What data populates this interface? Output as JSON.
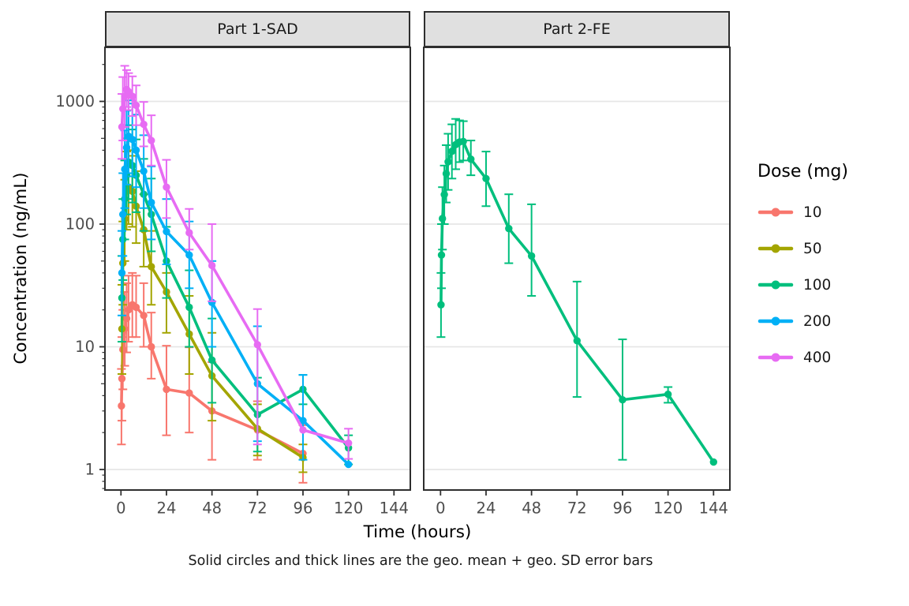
{
  "figure": {
    "background": "#FFFFFF"
  },
  "legend": {
    "title": "Dose (mg)",
    "entries": [
      {
        "label": "10",
        "color": "#F8766D"
      },
      {
        "label": "50",
        "color": "#A3A500"
      },
      {
        "label": "100",
        "color": "#00BF7D"
      },
      {
        "label": "200",
        "color": "#00B0F6"
      },
      {
        "label": "400",
        "color": "#E76BF3"
      }
    ]
  },
  "chart_data": {
    "type": "line",
    "title": "",
    "xlabel": "Time (hours)",
    "ylabel": "Concentration (ng/mL)",
    "caption": "Solid circles and thick lines are the geo. mean + geo. SD error bars",
    "legend_title": "Dose (mg)",
    "log_y": true,
    "x_ticks": [
      0,
      24,
      48,
      72,
      96,
      120,
      144
    ],
    "y_ticks": [
      1,
      10,
      100,
      1000
    ],
    "xlim_hours": [
      -8.5,
      152.5
    ],
    "ylim": [
      0.68,
      2750
    ],
    "grid": "major horizontal only",
    "legend_position": "right",
    "points_format": "t_hours, geo_mean, err_lo, err_hi",
    "style": {
      "strip_bg": "#E0E0E0",
      "grid_color": "#E6E6E6",
      "border_color": "#2E2E2E",
      "tick_label_color": "#4D4D4D"
    },
    "facets": [
      {
        "label": "Part 1-SAD",
        "series": [
          {
            "name": "10",
            "dose_mg": 10,
            "color": "#F8766D",
            "points": [
              [
                0.25,
                3.3,
                1.6,
                6.6
              ],
              [
                0.5,
                5.5,
                2.5,
                12
              ],
              [
                1,
                9.5,
                4.5,
                20
              ],
              [
                2,
                14,
                7,
                28
              ],
              [
                3,
                17,
                9,
                33
              ],
              [
                4,
                20,
                11,
                38
              ],
              [
                6,
                22,
                12,
                40
              ],
              [
                8,
                21,
                12,
                38
              ],
              [
                12,
                18,
                10,
                33
              ],
              [
                16,
                10,
                5.5,
                19
              ],
              [
                24,
                4.5,
                1.9,
                10.2
              ],
              [
                36,
                4.2,
                2,
                9.9
              ],
              [
                48,
                3,
                1.2,
                7.5
              ],
              [
                72,
                2.1,
                1.2,
                3.6
              ],
              [
                96,
                1.35,
                0.78,
                2.3
              ]
            ]
          },
          {
            "name": "50",
            "dose_mg": 50,
            "color": "#A3A500",
            "points": [
              [
                0.5,
                14,
                6,
                32
              ],
              [
                1,
                48,
                22,
                105
              ],
              [
                2,
                110,
                50,
                230
              ],
              [
                3,
                190,
                90,
                390
              ],
              [
                4,
                200,
                100,
                400
              ],
              [
                6,
                185,
                95,
                360
              ],
              [
                8,
                140,
                70,
                270
              ],
              [
                12,
                90,
                45,
                175
              ],
              [
                16,
                45,
                22,
                88
              ],
              [
                24,
                28,
                13,
                40
              ],
              [
                36,
                12.7,
                6,
                26
              ],
              [
                48,
                5.8,
                2.5,
                13
              ],
              [
                72,
                2.15,
                1.3,
                3.4
              ],
              [
                96,
                1.25,
                0.95,
                1.6
              ]
            ]
          },
          {
            "name": "100",
            "dose_mg": 100,
            "color": "#00BF7D",
            "points": [
              [
                0.5,
                25,
                11,
                55
              ],
              [
                1,
                75,
                35,
                160
              ],
              [
                2,
                160,
                75,
                330
              ],
              [
                3,
                250,
                120,
                500
              ],
              [
                4,
                320,
                160,
                640
              ],
              [
                6,
                300,
                150,
                590
              ],
              [
                8,
                250,
                125,
                490
              ],
              [
                12,
                175,
                88,
                340
              ],
              [
                16,
                120,
                60,
                235
              ],
              [
                24,
                50,
                25,
                95
              ],
              [
                36,
                21,
                10,
                42
              ],
              [
                48,
                7.8,
                3.5,
                17
              ],
              [
                72,
                2.8,
                1.4,
                5.6
              ],
              [
                96,
                4.5,
                3.4,
                5.9
              ],
              [
                120,
                1.5,
                1.1,
                1.9
              ]
            ]
          },
          {
            "name": "200",
            "dose_mg": 200,
            "color": "#00B0F6",
            "points": [
              [
                0.5,
                40,
                18,
                88
              ],
              [
                1,
                120,
                55,
                260
              ],
              [
                2,
                280,
                135,
                580
              ],
              [
                3,
                420,
                210,
                840
              ],
              [
                4,
                520,
                260,
                1020
              ],
              [
                6,
                490,
                245,
                960
              ],
              [
                8,
                400,
                200,
                780
              ],
              [
                12,
                270,
                135,
                530
              ],
              [
                16,
                150,
                75,
                295
              ],
              [
                24,
                87,
                47,
                160
              ],
              [
                36,
                56,
                30,
                105
              ],
              [
                48,
                23,
                10,
                50
              ],
              [
                72,
                5,
                1.7,
                14.7
              ],
              [
                96,
                2.5,
                1.2,
                5.9
              ],
              [
                120,
                1.1,
                null,
                null
              ]
            ]
          },
          {
            "name": "400",
            "dose_mg": 400,
            "color": "#E76BF3",
            "points": [
              [
                0.5,
                620,
                340,
                1150
              ],
              [
                1,
                870,
                480,
                1580
              ],
              [
                2,
                1100,
                620,
                1950
              ],
              [
                3,
                1250,
                900,
                1800
              ],
              [
                4,
                1200,
                850,
                1700
              ],
              [
                6,
                1100,
                760,
                1600
              ],
              [
                8,
                930,
                640,
                1350
              ],
              [
                12,
                650,
                430,
                990
              ],
              [
                16,
                480,
                300,
                770
              ],
              [
                24,
                200,
                112,
                334
              ],
              [
                36,
                85,
                62,
                133
              ],
              [
                48,
                46,
                23.5,
                100
              ],
              [
                72,
                10.4,
                1.6,
                20.3
              ],
              [
                96,
                2.1,
                null,
                null
              ],
              [
                120,
                1.64,
                1.22,
                2.15
              ]
            ]
          }
        ]
      },
      {
        "label": "Part 2-FE",
        "series": [
          {
            "name": "100",
            "dose_mg": 100,
            "color": "#00BF7D",
            "points": [
              [
                0.25,
                22,
                12,
                40
              ],
              [
                0.5,
                56,
                30,
                100
              ],
              [
                1,
                111,
                62,
                200
              ],
              [
                2,
                174,
                100,
                300
              ],
              [
                3,
                258,
                150,
                440
              ],
              [
                4,
                322,
                190,
                545
              ],
              [
                6,
                392,
                235,
                650
              ],
              [
                8,
                444,
                280,
                720
              ],
              [
                10,
                467,
                320,
                700
              ],
              [
                12,
                471,
                330,
                690
              ],
              [
                16,
                338,
                250,
                480
              ],
              [
                24,
                235,
                140,
                390
              ],
              [
                36,
                92,
                48,
                175
              ],
              [
                48,
                55,
                26,
                145
              ],
              [
                72,
                11.2,
                3.9,
                34
              ],
              [
                96,
                3.7,
                1.2,
                11.5
              ],
              [
                120,
                4.1,
                3.5,
                4.7
              ],
              [
                144,
                1.15,
                null,
                null
              ]
            ]
          }
        ]
      }
    ]
  }
}
